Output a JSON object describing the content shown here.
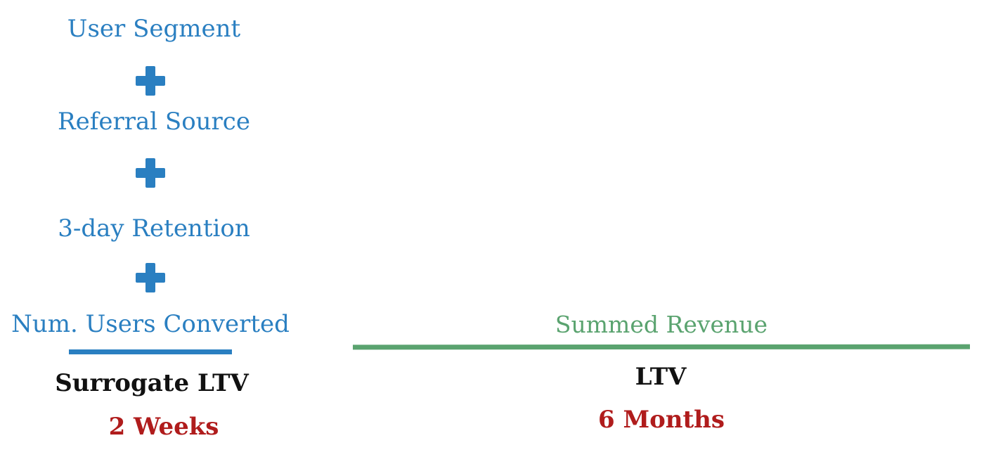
{
  "left": {
    "inputs": [
      "User Segment",
      "Referral Source",
      "3-day Retention",
      "Num. Users Converted"
    ],
    "result_label": "Surrogate LTV",
    "time_window": "2 Weeks"
  },
  "right": {
    "input": "Summed Revenue",
    "result_label": "LTV",
    "time_window": "6 Months"
  },
  "colors": {
    "input_text": "#2a7fc1",
    "left_bar": "#2a7fc1",
    "right_input_text": "#5aa36f",
    "right_bar": "#5aa36f",
    "result_text": "#111111",
    "time_text": "#b01c1c"
  },
  "icons": {
    "plus": "plus-icon"
  }
}
